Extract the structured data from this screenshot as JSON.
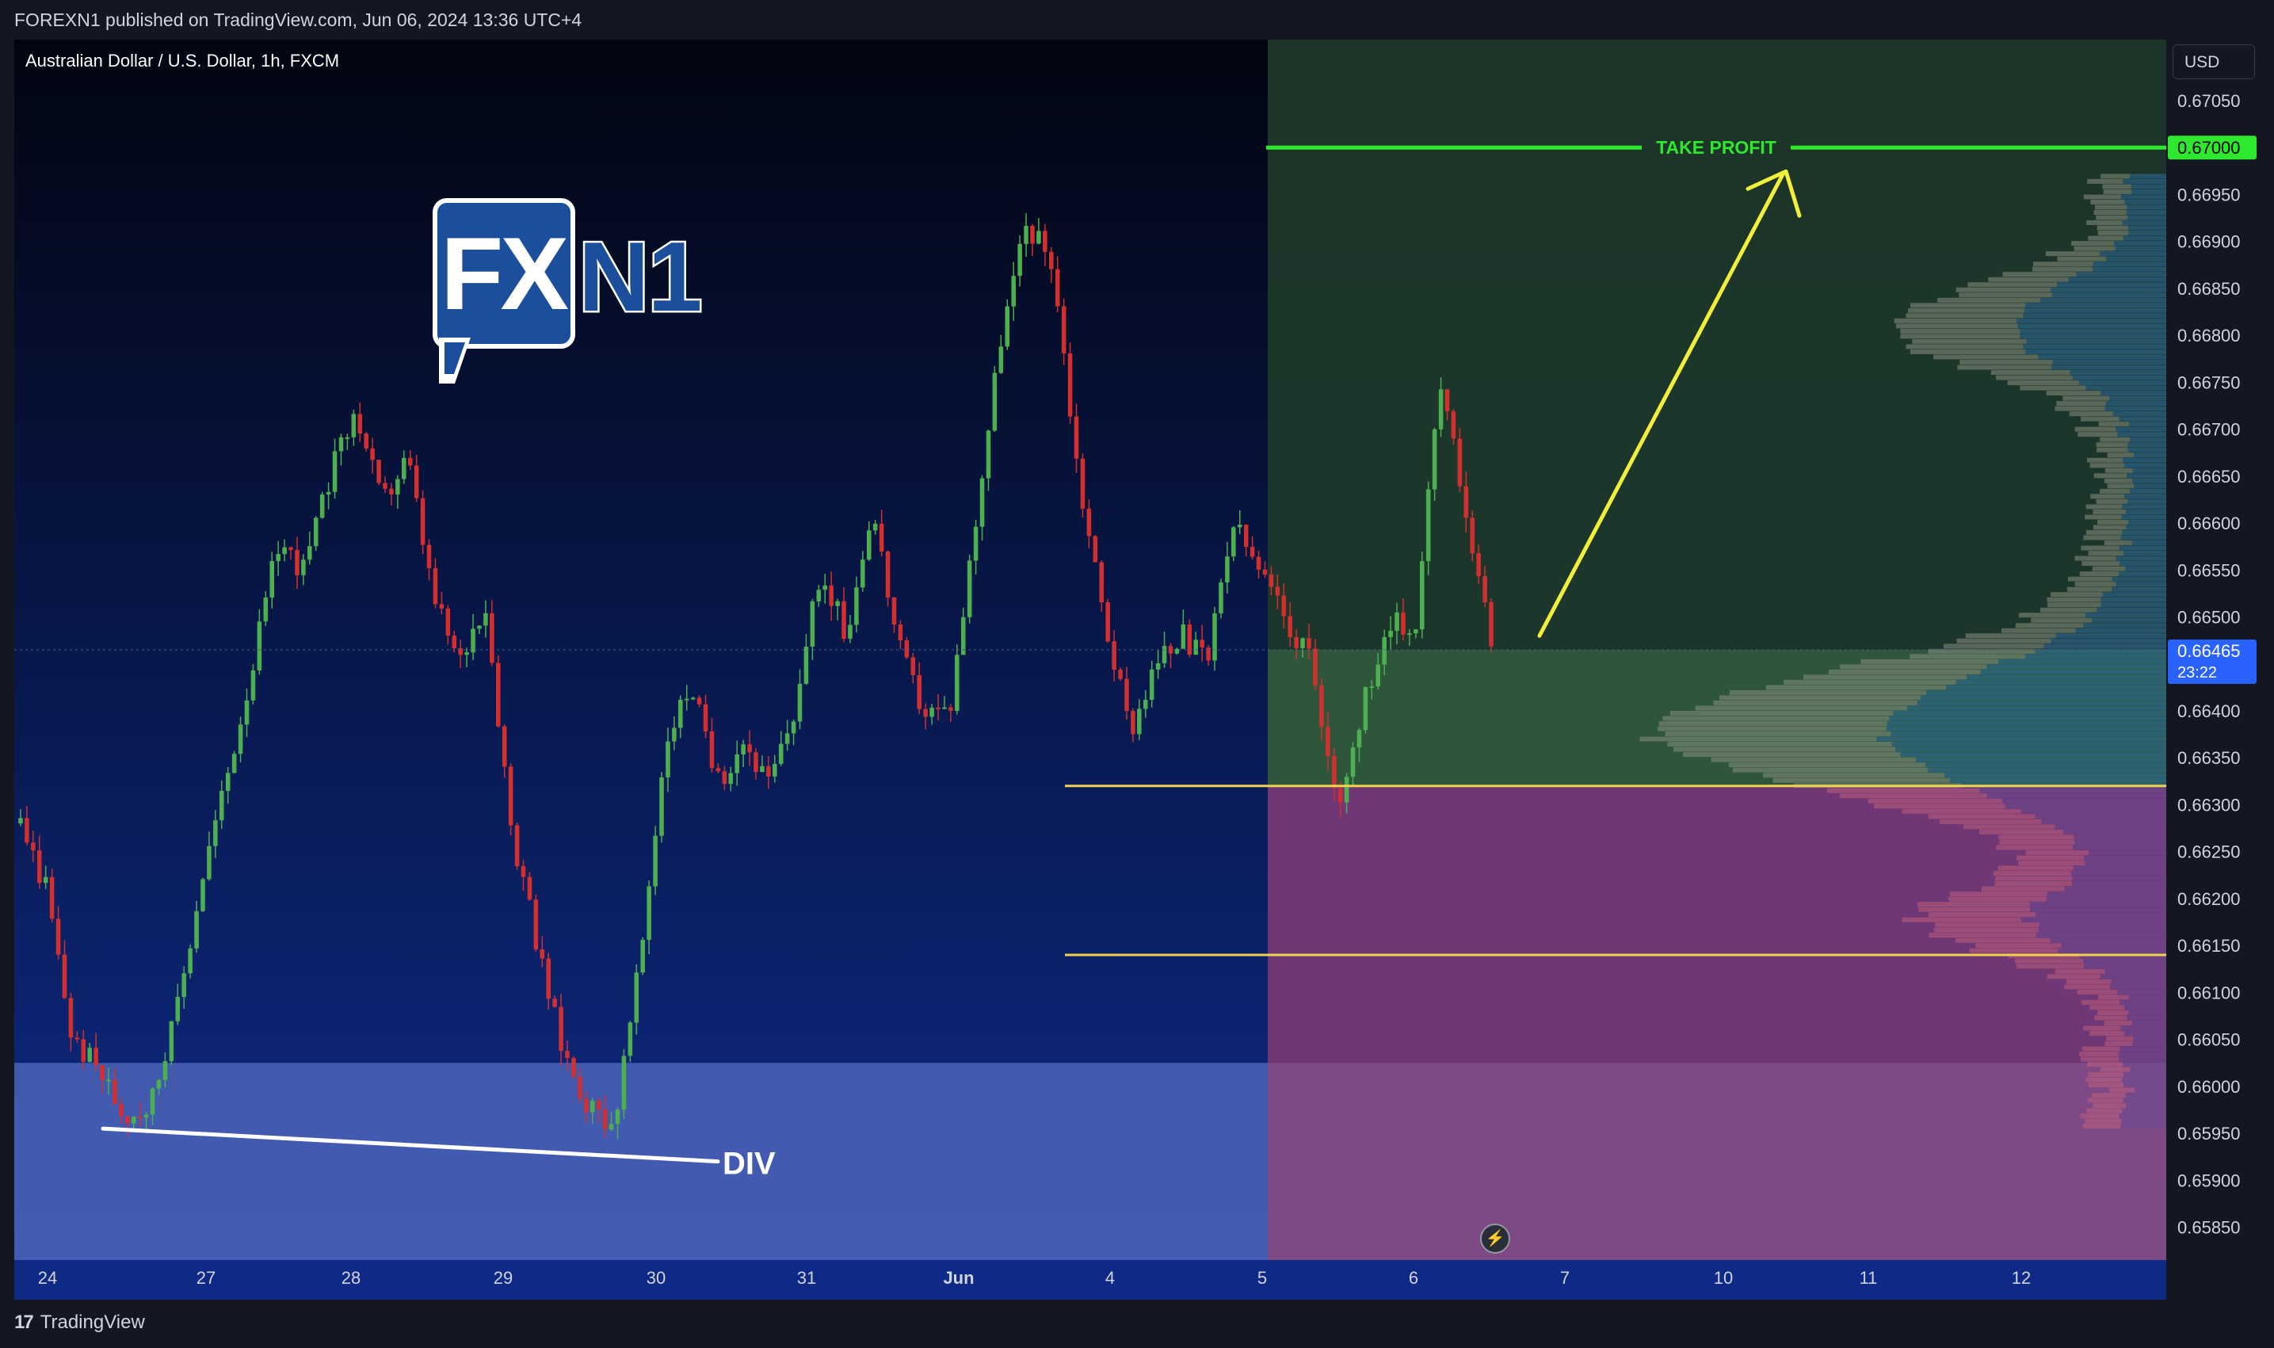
{
  "header": {
    "published": "FOREXN1 published on TradingView.com, Jun 06, 2024 13:36 UTC+4"
  },
  "chart": {
    "symbol_title": "Australian Dollar / U.S. Dollar, 1h, FXCM",
    "currency": "USD",
    "logo_text": {
      "fx": "FX",
      "n1": "N1"
    },
    "annotations": {
      "take_profit": "TAKE PROFIT",
      "div": "DIV"
    },
    "current_price": "0.66465",
    "countdown": "23:22",
    "target_price": "0.67000",
    "colors": {
      "bg_top": "#020510",
      "bg_bottom": "#0e2a86",
      "up": "#4caf50",
      "down": "#d32f2f",
      "target": "#2ee82e",
      "arrow": "#f2ef3a",
      "support": "#f0d34a",
      "profit_zone": "#2f5a3a",
      "stop_zone": "#7b3a78",
      "lower_zone": "#4c64b8",
      "price_tag": "#2962ff"
    },
    "icons": {
      "replay": "lightning-icon"
    }
  },
  "footer": {
    "brand": "TradingView",
    "brand_icon": "tradingview-logo-icon"
  },
  "chart_data": {
    "type": "candlestick",
    "title": "Australian Dollar / U.S. Dollar, 1h, FXCM",
    "x_tick_labels": [
      "24",
      "27",
      "28",
      "29",
      "30",
      "31",
      "Jun",
      "4",
      "5",
      "6",
      "7",
      "10",
      "11",
      "12"
    ],
    "y_tick_labels": [
      "0.67050",
      "0.67000",
      "0.66950",
      "0.66900",
      "0.66850",
      "0.66800",
      "0.66750",
      "0.66700",
      "0.66650",
      "0.66600",
      "0.66550",
      "0.66500",
      "0.66465",
      "0.66400",
      "0.66350",
      "0.66300",
      "0.66250",
      "0.66200",
      "0.66150",
      "0.66100",
      "0.66050",
      "0.66000",
      "0.65950",
      "0.65900",
      "0.65850"
    ],
    "ylim": [
      0.65815,
      0.67115
    ],
    "levels": {
      "take_profit": 0.67,
      "current": 0.66465,
      "support_upper": 0.6632,
      "support_lower": 0.6614,
      "zone_top": 0.66025
    },
    "price_path_waypoints": [
      0.6628,
      0.6621,
      0.6605,
      0.6602,
      0.6597,
      0.6598,
      0.6607,
      0.6622,
      0.6633,
      0.6645,
      0.6658,
      0.6655,
      0.6665,
      0.6672,
      0.6662,
      0.6667,
      0.6652,
      0.6645,
      0.6652,
      0.6628,
      0.6615,
      0.6604,
      0.6598,
      0.6596,
      0.6613,
      0.6637,
      0.6643,
      0.6632,
      0.6637,
      0.6632,
      0.664,
      0.6655,
      0.6648,
      0.6662,
      0.6647,
      0.664,
      0.664,
      0.666,
      0.668,
      0.6692,
      0.6688,
      0.6665,
      0.665,
      0.6638,
      0.6645,
      0.6648,
      0.6645,
      0.666,
      0.6655,
      0.665,
      0.6645,
      0.663,
      0.664,
      0.665,
      0.6648,
      0.6675,
      0.6662,
      0.66465
    ],
    "support_breakout_price": 0.6632,
    "divergence_note": "DIV"
  }
}
